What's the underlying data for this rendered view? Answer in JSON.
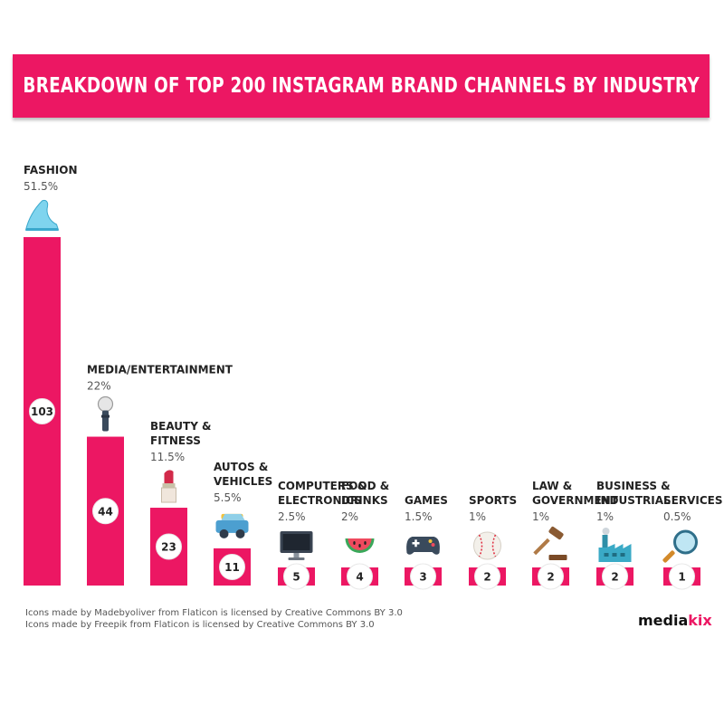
{
  "title": "BREAKDOWN OF TOP 200 INSTAGRAM BRAND CHANNELS BY INDUSTRY",
  "chart_data": {
    "type": "bar",
    "title": "BREAKDOWN OF TOP 200 INSTAGRAM BRAND CHANNELS BY INDUSTRY",
    "categories": [
      [
        "FASHION"
      ],
      [
        "MEDIA/ENTERTAINMENT"
      ],
      [
        "BEAUTY &",
        "FITNESS"
      ],
      [
        "AUTOS &",
        "VEHICLES"
      ],
      [
        "COMPUTERS &",
        "ELECTRONICS"
      ],
      [
        "FOOD &",
        "DRINKS"
      ],
      [
        "GAMES"
      ],
      [
        "SPORTS"
      ],
      [
        "LAW &",
        "GOVERNMENT"
      ],
      [
        "BUSINESS &",
        "INDUSTRIAL"
      ],
      [
        "SERVICES"
      ]
    ],
    "values": [
      103,
      44,
      23,
      11,
      5,
      4,
      3,
      2,
      2,
      2,
      1
    ],
    "value_labels": [
      "103",
      "44",
      "23",
      "11",
      "5",
      "4",
      "3",
      "2",
      "2",
      "2",
      "1"
    ],
    "percent_labels": [
      "51.5%",
      "22%",
      "11.5%",
      "5.5%",
      "2.5%",
      "2%",
      "1.5%",
      "1%",
      "1%",
      "1%",
      "0.5%"
    ],
    "icons": [
      "glass-slipper-icon",
      "microphone-icon",
      "lipstick-icon",
      "car-icon",
      "monitor-icon",
      "watermelon-icon",
      "game-controller-icon",
      "baseball-icon",
      "gavel-icon",
      "factory-icon",
      "magnifying-glass-icon"
    ],
    "xlabel": "",
    "ylabel": "",
    "ylim": [
      0,
      103
    ],
    "colors": {
      "bar": "#ec1763",
      "badge": "#ffffff",
      "text": "#222222"
    }
  },
  "credits": [
    "Icons made by Madebyoliver from Flaticon is licensed by Creative Commons BY 3.0",
    "Icons made by Freepik from Flaticon is licensed by Creative Commons BY 3.0"
  ],
  "brand": {
    "prefix": "media",
    "suffix": "kix"
  }
}
